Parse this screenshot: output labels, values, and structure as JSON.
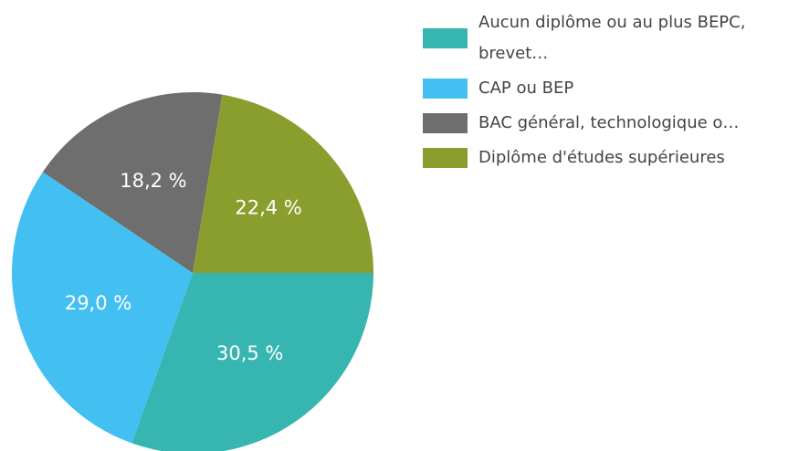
{
  "chart_data": {
    "type": "pie",
    "categories": [
      "Aucun diplôme ou au plus BEPC, brevet…",
      "CAP ou BEP",
      "BAC général, technologique o…",
      "Diplôme d'études supérieures"
    ],
    "values": [
      30.5,
      29.0,
      18.2,
      22.4
    ],
    "value_labels": [
      "30,5 %",
      "29,0 %",
      "18,2 %",
      "22,4 %"
    ],
    "colors": [
      "#37b6b1",
      "#43c0f1",
      "#6e6e6e",
      "#8a9e2e"
    ],
    "legend": "right"
  }
}
